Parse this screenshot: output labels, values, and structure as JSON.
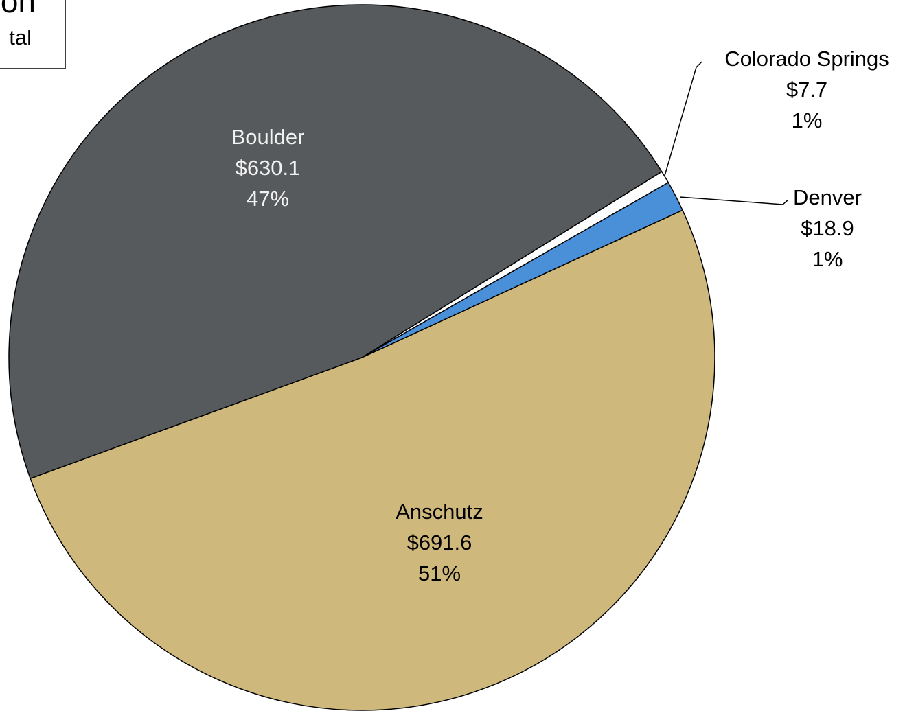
{
  "chart_data": {
    "type": "pie",
    "title": "on",
    "subtitle": "tal",
    "categories": [
      "Anschutz",
      "Boulder",
      "Colorado Springs",
      "Denver"
    ],
    "values": [
      691.6,
      630.1,
      7.7,
      18.9
    ],
    "value_labels": [
      "$691.6",
      "$630.1",
      "$7.7",
      "$18.9"
    ],
    "percent_labels": [
      "51%",
      "47%",
      "1%",
      "1%"
    ],
    "colors": [
      "#cfb87c",
      "#565a5c",
      "#ffffff",
      "#4a90d9"
    ]
  }
}
